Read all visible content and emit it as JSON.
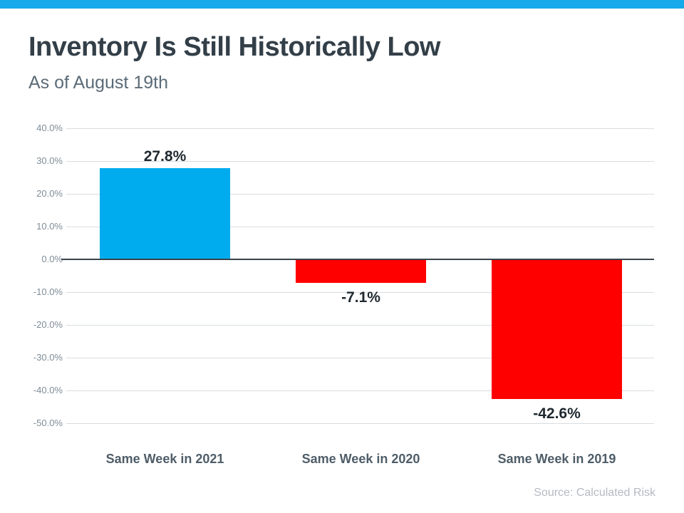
{
  "page": {
    "title": "Inventory Is Still Historically Low",
    "subtitle": "As of August 19th",
    "source": "Source: Calculated Risk"
  },
  "colors": {
    "accent_stripe": "#17AAEA",
    "positive_bar": "#00ACEE",
    "negative_bar": "#FE0000",
    "zero_axis_line": "#39434C",
    "gridline": "#D9DDE0",
    "title_text": "#333F48",
    "subtitle_text": "#5B6B77",
    "tick_text": "#7E8C97",
    "source_text": "#B4BBC1"
  },
  "chart_data": {
    "type": "bar",
    "title": "Inventory Is Still Historically Low",
    "subtitle": "As of August 19th",
    "categories": [
      "Same Week in 2021",
      "Same Week in 2020",
      "Same Week in 2019"
    ],
    "values": [
      27.8,
      -7.1,
      -42.6
    ],
    "value_labels": [
      "27.8%",
      "-7.1%",
      "-42.6%"
    ],
    "bar_colors": [
      "#00ACEE",
      "#FE0000",
      "#FE0000"
    ],
    "xlabel": "",
    "ylabel": "",
    "ylim": [
      -50,
      40
    ],
    "y_tick_values": [
      40,
      30,
      20,
      10,
      0,
      -10,
      -20,
      -30,
      -40,
      -50
    ],
    "y_tick_labels": [
      "40.0%",
      "30.0%",
      "20.0%",
      "10.0%",
      "0.0%",
      "-10.0%",
      "-20.0%",
      "-30.0%",
      "-40.0%",
      "-50.0%"
    ],
    "grid": true,
    "legend_position": "none",
    "source": "Source: Calculated Risk"
  }
}
